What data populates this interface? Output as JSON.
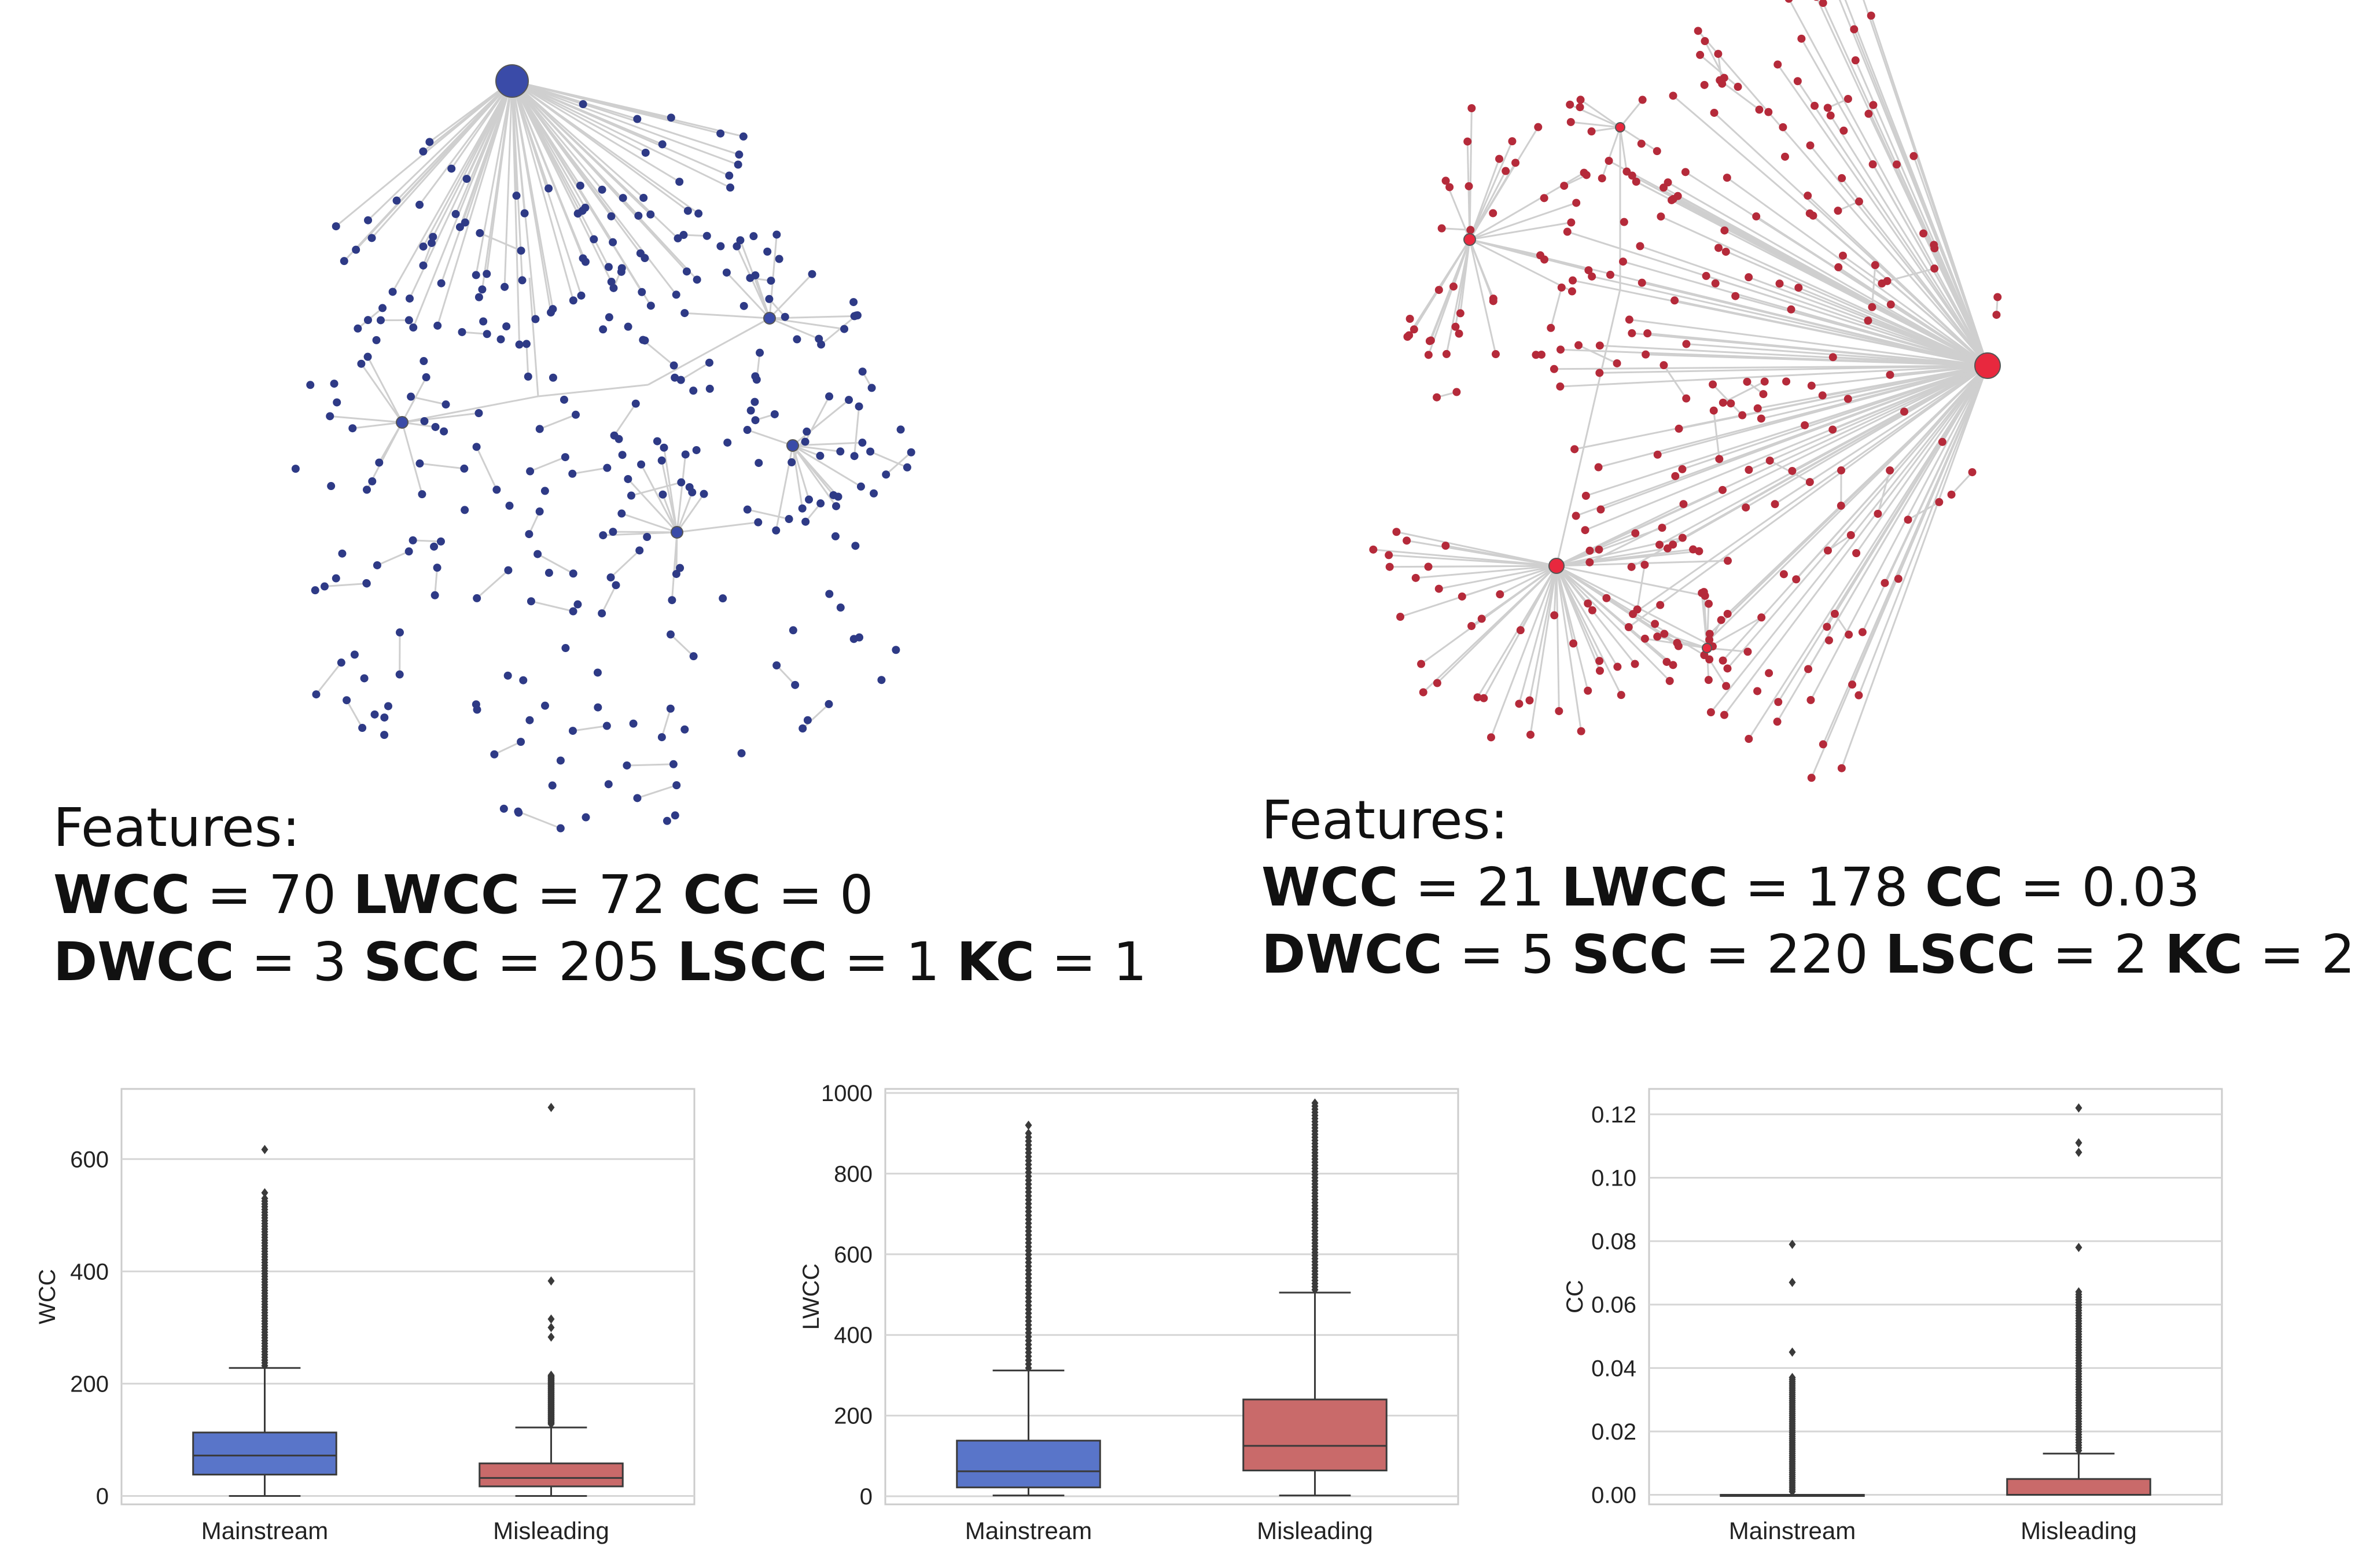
{
  "networks": {
    "mainstream": {
      "node_color": "#2e3a86",
      "hub_color": "#3a4ba8",
      "features_title": "Features:",
      "wcc_label": "WCC",
      "wcc_value": "= 70",
      "lwcc_label": "LWCC",
      "lwcc_value": "= 72",
      "cc_label": "CC",
      "cc_value": "= 0",
      "dwcc_label": "DWCC",
      "dwcc_value": "= 3",
      "scc_label": "SCC",
      "scc_value": "= 205",
      "lscc_label": "LSCC",
      "lscc_value": "= 1",
      "kc_label": "KC",
      "kc_value": "= 1"
    },
    "misleading": {
      "node_color": "#b52a3a",
      "hub_color": "#e8283e",
      "features_title": "Features:",
      "wcc_label": "WCC",
      "wcc_value": "= 21",
      "lwcc_label": "LWCC",
      "lwcc_value": "= 178",
      "cc_label": "CC",
      "cc_value": "= 0.03",
      "dwcc_label": "DWCC",
      "dwcc_value": "= 5",
      "scc_label": "SCC",
      "scc_value": "= 220",
      "lscc_label": "LSCC",
      "lscc_value": "= 2",
      "kc_label": "KC",
      "kc_value": "= 2"
    }
  },
  "chart_data": [
    {
      "type": "box",
      "id": "wcc",
      "ylabel": "WCC",
      "ylim": [
        -15,
        725
      ],
      "yticks": [
        0,
        200,
        400,
        600
      ],
      "categories": [
        "Mainstream",
        "Misleading"
      ],
      "colors": [
        "#5975c9",
        "#c96a6a"
      ],
      "boxes": [
        {
          "name": "Mainstream",
          "min": 0,
          "q1": 38,
          "median": 72,
          "q3": 113,
          "max": 228,
          "outliers_range": [
            232,
            530
          ],
          "outliers": [
            540,
            617
          ]
        },
        {
          "name": "Misleading",
          "min": 0,
          "q1": 17,
          "median": 32,
          "q3": 58,
          "max": 122,
          "outliers_range": [
            128,
            215
          ],
          "outliers": [
            283,
            300,
            315,
            383,
            692
          ]
        }
      ]
    },
    {
      "type": "box",
      "id": "lwcc",
      "ylabel": "LWCC",
      "ylim": [
        -20,
        1010
      ],
      "yticks": [
        0,
        200,
        400,
        600,
        800,
        1000
      ],
      "categories": [
        "Mainstream",
        "Misleading"
      ],
      "colors": [
        "#5975c9",
        "#c96a6a"
      ],
      "boxes": [
        {
          "name": "Mainstream",
          "min": 2,
          "q1": 22,
          "median": 62,
          "q3": 138,
          "max": 312,
          "outliers_range": [
            318,
            900
          ],
          "outliers": [
            920
          ]
        },
        {
          "name": "Misleading",
          "min": 2,
          "q1": 64,
          "median": 125,
          "q3": 240,
          "max": 505,
          "outliers_range": [
            512,
            975
          ],
          "outliers": []
        }
      ]
    },
    {
      "type": "box",
      "id": "cc",
      "ylabel": "CC",
      "ylim": [
        -0.003,
        0.128
      ],
      "yticks": [
        0.0,
        0.02,
        0.04,
        0.06,
        0.08,
        0.1,
        0.12
      ],
      "ytick_labels": [
        "0.00",
        "0.02",
        "0.04",
        "0.06",
        "0.08",
        "0.10",
        "0.12"
      ],
      "categories": [
        "Mainstream",
        "Misleading"
      ],
      "colors": [
        "#5975c9",
        "#c96a6a"
      ],
      "boxes": [
        {
          "name": "Mainstream",
          "min": 0,
          "q1": 0,
          "median": 0,
          "q3": 0,
          "max": 0,
          "outliers_range": [
            0.001,
            0.037
          ],
          "outliers": [
            0.045,
            0.067,
            0.079
          ]
        },
        {
          "name": "Misleading",
          "min": 0,
          "q1": 0,
          "median": 0,
          "q3": 0.005,
          "max": 0.013,
          "outliers_range": [
            0.014,
            0.064
          ],
          "outliers": [
            0.078,
            0.108,
            0.111,
            0.122
          ]
        }
      ]
    }
  ]
}
